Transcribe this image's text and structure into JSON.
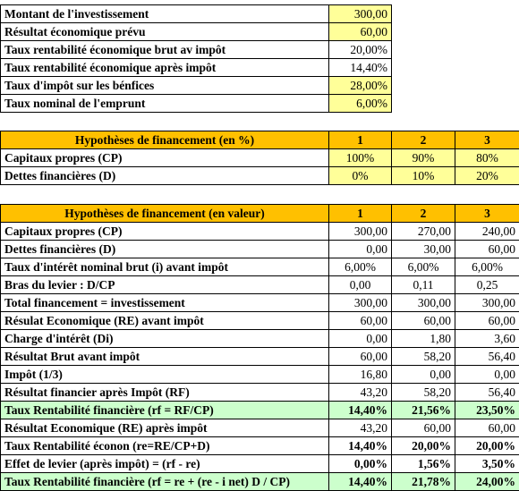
{
  "summary": {
    "rows": [
      [
        "Montant de l'investissement",
        "300,00"
      ],
      [
        "Résultat économique prévu",
        "60,00"
      ],
      [
        "Taux rentabilité économique brut av impôt",
        "20,00%"
      ],
      [
        "Taux rentabilité économique après impôt",
        "14,40%"
      ],
      [
        "Taux d'impôt sur les bénfices",
        "28,00%"
      ],
      [
        "Taux nominal de l'emprunt",
        "6,00%"
      ]
    ]
  },
  "pct_table": {
    "header": [
      "Hypothèses de financement (en %)",
      "1",
      "2",
      "3"
    ],
    "rows": [
      [
        "Capitaux propres (CP)",
        "100%",
        "90%",
        "80%"
      ],
      [
        "Dettes financières (D)",
        "0%",
        "10%",
        "20%"
      ]
    ]
  },
  "value_table": {
    "header": [
      "Hypothèses de financement (en valeur)",
      "1",
      "2",
      "3"
    ],
    "rows": [
      [
        "Capitaux propres (CP)",
        "300,00",
        "270,00",
        "240,00"
      ],
      [
        "Dettes financières (D)",
        "0,00",
        "30,00",
        "60,00"
      ],
      [
        "Taux d'intérêt nominal brut (i) avant impôt",
        "6,00%",
        "6,00%",
        "6,00%"
      ],
      [
        "Bras du levier : D/CP",
        "0,00",
        "0,11",
        "0,25"
      ],
      [
        "Total financement = investissement",
        "300,00",
        "300,00",
        "300,00"
      ],
      [
        "Résulat Economique (RE) avant impôt",
        "60,00",
        "60,00",
        "60,00"
      ],
      [
        "Charge d'intérêt (Di)",
        "0,00",
        "1,80",
        "3,60"
      ],
      [
        "Résultat Brut avant impôt",
        "60,00",
        "58,20",
        "56,40"
      ],
      [
        "Impôt (1/3)",
        "16,80",
        "0,00",
        "0,00"
      ],
      [
        "Résultat financier après Impôt (RF)",
        "43,20",
        "58,20",
        "56,40"
      ],
      [
        "Taux Rentabilité financière (rf = RF/CP)",
        "14,40%",
        "21,56%",
        "23,50%"
      ],
      [
        "Résultat Economique (RE) après impôt",
        "43,20",
        "60,00",
        "60,00"
      ],
      [
        "Taux Rentabilité éconon (re=RE/CP+D)",
        "14,40%",
        "20,00%",
        "20,00%"
      ],
      [
        "Effet de levier (après impôt) = (rf - re)",
        "0,00%",
        "1,56%",
        "3,50%"
      ],
      [
        "Taux Rentabilité financière (rf = re + (re - i net) D / CP)",
        "14,40%",
        "21,78%",
        "24,00%"
      ]
    ]
  }
}
